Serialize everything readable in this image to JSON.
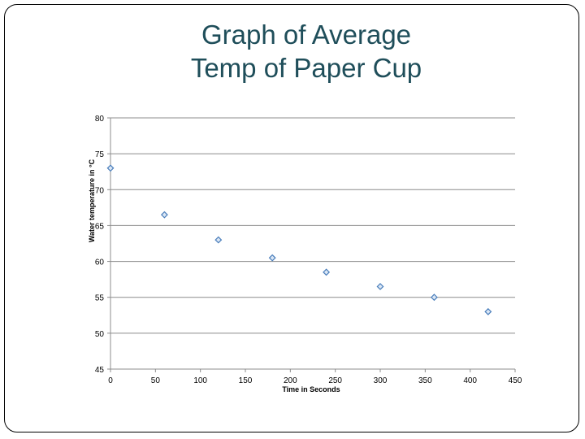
{
  "chart_data": {
    "type": "scatter",
    "title": [
      "Graph of Average",
      "Temp of Paper Cup"
    ],
    "xlabel": "Time in Seconds",
    "ylabel": "Water temperature in °C",
    "xlim": [
      0,
      450
    ],
    "ylim": [
      45,
      80
    ],
    "x_ticks": [
      0,
      50,
      100,
      150,
      200,
      250,
      300,
      350,
      400,
      450
    ],
    "y_ticks": [
      45,
      50,
      55,
      60,
      65,
      70,
      75,
      80
    ],
    "grid": "horizontal",
    "legend": "none",
    "marker_color": "#4a7ebb",
    "points": [
      {
        "x": 0,
        "y": 73
      },
      {
        "x": 60,
        "y": 66.5
      },
      {
        "x": 120,
        "y": 63
      },
      {
        "x": 180,
        "y": 60.5
      },
      {
        "x": 240,
        "y": 58.5
      },
      {
        "x": 300,
        "y": 56.5
      },
      {
        "x": 360,
        "y": 55
      },
      {
        "x": 420,
        "y": 53
      }
    ]
  }
}
